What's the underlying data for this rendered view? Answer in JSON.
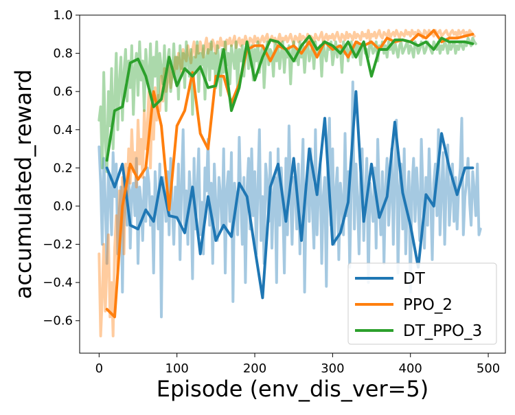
{
  "chart_data": {
    "type": "line",
    "xlabel": "Episode (env_dis_ver=5)",
    "ylabel": "accumulated_reward",
    "xlim": [
      -25,
      522
    ],
    "ylim": [
      -0.77,
      1.0
    ],
    "xticks": [
      0,
      100,
      200,
      300,
      400,
      500
    ],
    "xtick_labels": [
      "0",
      "100",
      "200",
      "300",
      "400",
      "500"
    ],
    "yticks": [
      -0.6,
      -0.4,
      -0.2,
      0.0,
      0.2,
      0.4,
      0.6,
      0.8,
      1.0
    ],
    "ytick_labels": [
      "−0.6",
      "−0.4",
      "−0.2",
      "0.0",
      "0.2",
      "0.4",
      "0.6",
      "0.8",
      "1.0"
    ],
    "grid": false,
    "legend": {
      "position": "lower-right"
    },
    "colors": {
      "DT": "#1f77b4",
      "PPO_2": "#ff7f0e",
      "DT_PPO_3": "#2ca02c"
    },
    "series": [
      {
        "name": "DT",
        "color": "#1f77b4",
        "raw_start": 0,
        "raw_step": 2,
        "raw_values": [
          0.31,
          0.12,
          -0.2,
          0.25,
          0.02,
          -0.3,
          0.18,
          0.08,
          -0.15,
          0.28,
          0.05,
          0.22,
          -0.25,
          -0.05,
          0.1,
          -0.45,
          0.15,
          0.02,
          -0.1,
          0.2,
          -0.22,
          0.08,
          0.12,
          -0.05,
          0.25,
          -0.3,
          0.1,
          0.02,
          -0.18,
          0.15,
          -0.08,
          0.2,
          0.12,
          -0.1,
          0.05,
          -0.35,
          0.18,
          0.02,
          -0.12,
          0.22,
          -0.58,
          0.15,
          0.05,
          -0.08,
          0.18,
          -0.15,
          0.25,
          0.0,
          -0.2,
          0.1,
          -0.05,
          0.22,
          -0.28,
          0.12,
          0.4,
          -0.1,
          0.08,
          -0.2,
          0.18,
          0.05,
          -0.38,
          0.25,
          -0.12,
          0.1,
          0.3,
          -0.15,
          0.02,
          -0.25,
          0.2,
          0.08,
          0.35,
          -0.1,
          0.12,
          -0.3,
          0.22,
          0.0,
          -0.18,
          0.15,
          0.05,
          -0.12,
          0.3,
          -0.35,
          0.08,
          0.18,
          -0.08,
          0.28,
          -0.5,
          0.12,
          0.02,
          -0.15,
          0.36,
          0.05,
          -0.2,
          0.15,
          -0.4,
          0.08,
          0.25,
          -0.12,
          0.3,
          -0.05,
          0.18,
          -0.25,
          0.1,
          0.4,
          -0.18,
          0.05,
          -0.3,
          0.22,
          0.12,
          -0.08,
          0.28,
          -0.22,
          0.05,
          0.15,
          -0.4,
          0.3,
          -0.1,
          0.2,
          0.02,
          -0.35,
          0.25,
          -0.15,
          0.42,
          0.05,
          -0.2,
          0.15,
          0.08,
          -0.12,
          0.22,
          -0.25,
          0.1,
          0.35,
          -0.45,
          0.05,
          0.2,
          -0.08,
          0.3,
          0.0,
          -0.22,
          0.4,
          -0.15,
          0.1,
          0.22,
          -0.3,
          0.05,
          0.15,
          -0.42,
          0.25,
          0.46,
          -0.1,
          0.3,
          -0.2,
          0.08,
          0.2,
          -0.28,
          0.12,
          0.02,
          -0.15,
          0.38,
          -0.05,
          0.18,
          -0.32,
          0.1,
          0.65,
          -0.12,
          0.22,
          0.05,
          -0.25,
          0.15,
          0.3,
          -0.18,
          0.08,
          0.25,
          -0.4,
          0.12,
          0.02,
          -0.08,
          0.2,
          -0.22,
          0.35,
          0.05,
          -0.15,
          0.18,
          -0.3,
          0.1,
          0.25,
          -0.1,
          0.05,
          0.3,
          -0.2,
          0.15,
          0.45,
          -0.35,
          0.08,
          0.22,
          -0.12,
          0.3,
          -0.25,
          0.05,
          0.18,
          -0.45,
          0.1,
          0.25,
          -0.08,
          0.2,
          0.02,
          -0.18,
          0.35,
          0.08,
          -0.22,
          0.15,
          -0.1,
          0.3,
          0.05,
          -0.28,
          0.12,
          0.22,
          -0.05,
          0.4,
          -0.15,
          0.08,
          0.28,
          -0.2,
          0.12,
          0.32,
          -0.1,
          0.05,
          0.22,
          -0.08,
          0.15,
          -0.12,
          0.1,
          0.2,
          0.46,
          -0.15,
          0.05,
          0.12,
          0.25,
          0.02,
          -0.1,
          0.18,
          0.08,
          -0.05,
          0.22,
          -0.15,
          -0.12
        ],
        "smooth_x": [
          10,
          20,
          30,
          40,
          50,
          60,
          70,
          80,
          90,
          100,
          110,
          120,
          130,
          140,
          150,
          160,
          170,
          180,
          190,
          200,
          210,
          220,
          230,
          240,
          250,
          260,
          270,
          280,
          290,
          300,
          310,
          320,
          330,
          340,
          350,
          360,
          370,
          380,
          390,
          400,
          410,
          420,
          430,
          440,
          450,
          460,
          470,
          480
        ],
        "smooth_y": [
          0.2,
          0.1,
          0.22,
          -0.1,
          -0.12,
          -0.02,
          -0.08,
          0.15,
          -0.05,
          -0.06,
          -0.14,
          0.1,
          -0.25,
          0.05,
          -0.18,
          -0.1,
          -0.16,
          0.12,
          0.05,
          -0.22,
          -0.48,
          0.1,
          0.22,
          -0.08,
          0.25,
          -0.18,
          0.3,
          0.06,
          0.46,
          -0.2,
          -0.14,
          0.02,
          0.6,
          -0.08,
          0.22,
          -0.06,
          0.05,
          0.44,
          0.07,
          -0.1,
          -0.32,
          0.06,
          0.0,
          0.38,
          0.2,
          0.06,
          0.2,
          0.2
        ]
      },
      {
        "name": "PPO_2",
        "color": "#ff7f0e",
        "raw_start": 0,
        "raw_step": 2,
        "raw_values": [
          -0.25,
          -0.68,
          -0.48,
          -0.2,
          -0.55,
          -0.3,
          -0.15,
          -0.58,
          -0.4,
          -0.68,
          -0.22,
          -0.05,
          -0.35,
          0.08,
          -0.1,
          0.15,
          -0.25,
          0.22,
          0.05,
          0.3,
          0.12,
          0.4,
          0.18,
          0.28,
          0.1,
          0.45,
          0.22,
          0.35,
          0.15,
          0.5,
          0.3,
          0.42,
          0.6,
          0.2,
          0.55,
          0.35,
          0.62,
          0.45,
          0.58,
          0.5,
          0.68,
          0.55,
          0.72,
          0.6,
          0.65,
          0.75,
          0.62,
          0.7,
          0.68,
          0.78,
          0.72,
          0.8,
          0.75,
          0.7,
          0.82,
          0.78,
          0.76,
          0.84,
          0.8,
          0.75,
          0.82,
          0.86,
          0.78,
          0.84,
          0.8,
          0.86,
          0.82,
          0.78,
          0.84,
          0.88,
          0.8,
          0.85,
          0.82,
          0.87,
          0.84,
          0.8,
          0.86,
          0.83,
          0.88,
          0.84,
          0.86,
          0.82,
          0.87,
          0.85,
          0.88,
          0.84,
          0.86,
          0.89,
          0.83,
          0.86,
          0.88,
          0.84,
          0.87,
          0.85,
          0.89,
          0.86,
          0.84,
          0.88,
          0.87,
          0.85,
          0.89,
          0.86,
          0.88,
          0.85,
          0.87,
          0.89,
          0.86,
          0.88,
          0.9,
          0.85,
          0.87,
          0.89,
          0.86,
          0.88,
          0.85,
          0.87,
          0.9,
          0.86,
          0.88,
          0.87,
          0.89,
          0.86,
          0.88,
          0.9,
          0.87,
          0.85,
          0.89,
          0.88,
          0.86,
          0.9,
          0.87,
          0.89,
          0.88,
          0.86,
          0.9,
          0.87,
          0.89,
          0.88,
          0.86,
          0.9,
          0.88,
          0.87,
          0.89,
          0.91,
          0.86,
          0.88,
          0.9,
          0.87,
          0.89,
          0.88,
          0.9,
          0.87,
          0.89,
          0.91,
          0.88,
          0.86,
          0.9,
          0.89,
          0.87,
          0.91,
          0.88,
          0.9,
          0.89,
          0.87,
          0.91,
          0.88,
          0.9,
          0.89,
          0.87,
          0.91,
          0.89,
          0.9,
          0.88,
          0.92,
          0.87,
          0.9,
          0.89,
          0.91,
          0.88,
          0.9,
          0.92,
          0.89,
          0.88,
          0.91,
          0.9,
          0.89,
          0.92,
          0.88,
          0.9,
          0.91,
          0.89,
          0.92,
          0.9,
          0.88,
          0.91,
          0.9,
          0.89,
          0.92,
          0.9,
          0.91,
          0.89,
          0.92,
          0.9,
          0.91,
          0.89,
          0.92,
          0.91,
          0.9,
          0.88,
          0.92,
          0.91,
          0.89,
          0.92,
          0.9,
          0.91,
          0.89,
          0.92,
          0.9,
          0.91,
          0.92,
          0.89,
          0.9,
          0.91,
          0.92,
          0.9,
          0.89,
          0.91,
          0.92,
          0.9,
          0.91,
          0.89,
          0.92,
          0.9,
          0.91,
          0.92,
          0.89,
          0.91,
          0.9,
          0.92,
          0.91,
          0.9,
          0.89
        ],
        "smooth_x": [
          10,
          20,
          30,
          40,
          50,
          60,
          70,
          80,
          90,
          100,
          110,
          120,
          130,
          140,
          150,
          160,
          170,
          180,
          190,
          200,
          210,
          220,
          230,
          240,
          250,
          260,
          270,
          280,
          290,
          300,
          310,
          320,
          330,
          340,
          350,
          360,
          370,
          380,
          390,
          400,
          410,
          420,
          430,
          440,
          450,
          460,
          470,
          480
        ],
        "smooth_y": [
          -0.54,
          -0.58,
          0.0,
          0.22,
          0.14,
          0.2,
          0.6,
          0.42,
          -0.02,
          0.42,
          0.5,
          0.7,
          0.38,
          0.3,
          0.68,
          0.68,
          0.54,
          0.64,
          0.82,
          0.84,
          0.84,
          0.76,
          0.84,
          0.82,
          0.84,
          0.8,
          0.86,
          0.78,
          0.86,
          0.82,
          0.84,
          0.78,
          0.86,
          0.84,
          0.86,
          0.82,
          0.88,
          0.86,
          0.87,
          0.86,
          0.9,
          0.88,
          0.92,
          0.86,
          0.88,
          0.88,
          0.89,
          0.9
        ]
      },
      {
        "name": "DT_PPO_3",
        "color": "#2ca02c",
        "raw_start": 0,
        "raw_step": 2,
        "raw_values": [
          0.45,
          0.52,
          0.2,
          0.7,
          0.35,
          0.18,
          0.6,
          0.42,
          0.72,
          0.3,
          0.55,
          0.8,
          0.4,
          0.65,
          0.78,
          0.45,
          0.7,
          0.82,
          0.55,
          0.76,
          0.62,
          0.84,
          0.48,
          0.72,
          0.8,
          0.58,
          0.86,
          0.66,
          0.76,
          0.5,
          0.82,
          0.7,
          0.62,
          0.85,
          0.58,
          0.78,
          0.68,
          0.86,
          0.55,
          0.8,
          0.72,
          0.64,
          0.84,
          0.5,
          0.76,
          0.82,
          0.6,
          0.7,
          0.85,
          0.66,
          0.78,
          0.56,
          0.84,
          0.72,
          0.8,
          0.62,
          0.86,
          0.76,
          0.68,
          0.82,
          0.48,
          0.78,
          0.7,
          0.86,
          0.6,
          0.8,
          0.74,
          0.84,
          0.56,
          0.78,
          0.82,
          0.66,
          0.86,
          0.72,
          0.8,
          0.62,
          0.84,
          0.76,
          0.58,
          0.82,
          0.7,
          0.86,
          0.74,
          0.8,
          0.64,
          0.84,
          0.78,
          0.72,
          0.86,
          0.6,
          0.82,
          0.76,
          0.84,
          0.68,
          0.8,
          0.86,
          0.72,
          0.78,
          0.84,
          0.66,
          0.82,
          0.76,
          0.86,
          0.7,
          0.8,
          0.84,
          0.62,
          0.78,
          0.86,
          0.74,
          0.82,
          0.8,
          0.68,
          0.86,
          0.76,
          0.84,
          0.72,
          0.8,
          0.86,
          0.7,
          0.82,
          0.78,
          0.84,
          0.64,
          0.8,
          0.86,
          0.76,
          0.82,
          0.74,
          0.86,
          0.78,
          0.84,
          0.7,
          0.82,
          0.86,
          0.76,
          0.8,
          0.84,
          0.72,
          0.86,
          0.78,
          0.82,
          0.84,
          0.68,
          0.86,
          0.8,
          0.76,
          0.84,
          0.82,
          0.86,
          0.74,
          0.8,
          0.86,
          0.78,
          0.84,
          0.82,
          0.7,
          0.86,
          0.8,
          0.84,
          0.76,
          0.82,
          0.86,
          0.78,
          0.84,
          0.8,
          0.86,
          0.82,
          0.74,
          0.84,
          0.86,
          0.8,
          0.82,
          0.78,
          0.86,
          0.84,
          0.8,
          0.82,
          0.86,
          0.76,
          0.84,
          0.82,
          0.86,
          0.8,
          0.84,
          0.78,
          0.86,
          0.82,
          0.84,
          0.8,
          0.86,
          0.82,
          0.78,
          0.84,
          0.86,
          0.8,
          0.82,
          0.84,
          0.86,
          0.8,
          0.84,
          0.82,
          0.78,
          0.86,
          0.84,
          0.8,
          0.82,
          0.86,
          0.84,
          0.8,
          0.82,
          0.86,
          0.84,
          0.82,
          0.8,
          0.86,
          0.84,
          0.82,
          0.86,
          0.8,
          0.84,
          0.82,
          0.86,
          0.84,
          0.8,
          0.86,
          0.82,
          0.84,
          0.86,
          0.8,
          0.84,
          0.82,
          0.86,
          0.84,
          0.82,
          0.86,
          0.84,
          0.88,
          0.86,
          0.84,
          0.88,
          0.86,
          0.85
        ],
        "smooth_x": [
          10,
          20,
          30,
          40,
          50,
          60,
          70,
          80,
          90,
          100,
          110,
          120,
          130,
          140,
          150,
          160,
          170,
          180,
          190,
          200,
          210,
          220,
          230,
          240,
          250,
          260,
          270,
          280,
          290,
          300,
          310,
          320,
          330,
          340,
          350,
          360,
          370,
          380,
          390,
          400,
          410,
          420,
          430,
          440,
          450,
          460,
          470,
          480
        ],
        "smooth_y": [
          0.24,
          0.5,
          0.52,
          0.75,
          0.77,
          0.68,
          0.52,
          0.56,
          0.78,
          0.63,
          0.72,
          0.68,
          0.73,
          0.62,
          0.63,
          0.82,
          0.5,
          0.62,
          0.86,
          0.66,
          0.78,
          0.87,
          0.86,
          0.82,
          0.76,
          0.84,
          0.89,
          0.82,
          0.86,
          0.84,
          0.8,
          0.86,
          0.78,
          0.86,
          0.68,
          0.82,
          0.82,
          0.87,
          0.87,
          0.86,
          0.84,
          0.86,
          0.82,
          0.88,
          0.86,
          0.86,
          0.86,
          0.85
        ]
      }
    ]
  }
}
